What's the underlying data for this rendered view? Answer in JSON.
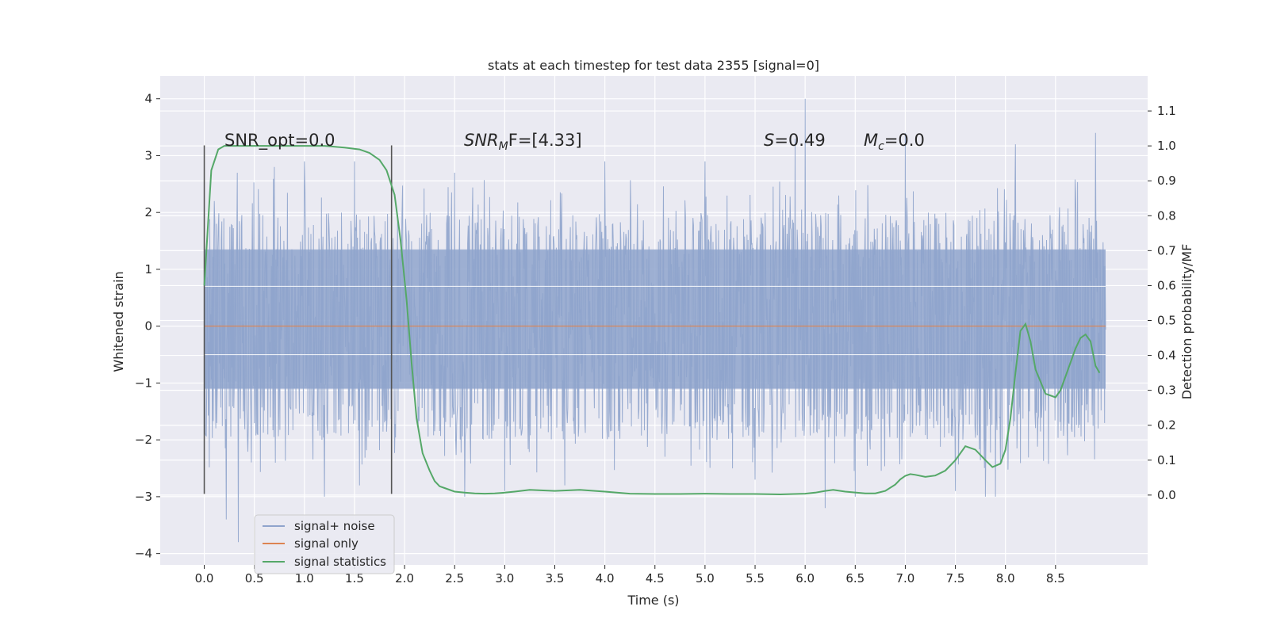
{
  "chart_data": {
    "type": "line",
    "title": "stats at each timestep for test data 2355 [signal=0]",
    "xlabel": "Time (s)",
    "ylabel_left": "Whitened strain",
    "ylabel_right": "Detection probability/MF",
    "xlim": [
      -0.44,
      9.42
    ],
    "ylim_left": [
      -4.2,
      4.4
    ],
    "ylim_right": [
      -0.2,
      1.2
    ],
    "x_ticks": [
      0.0,
      0.5,
      1.0,
      1.5,
      2.0,
      2.5,
      3.0,
      3.5,
      4.0,
      4.5,
      5.0,
      5.5,
      6.0,
      6.5,
      7.0,
      7.5,
      8.0,
      8.5
    ],
    "x_tick_labels": [
      "0.0",
      "0.5",
      "1.0",
      "1.5",
      "2.0",
      "2.5",
      "3.0",
      "3.5",
      "4.0",
      "4.5",
      "5.0",
      "5.5",
      "6.0",
      "6.5",
      "7.0",
      "7.5",
      "8.0",
      "8.5"
    ],
    "y_left_ticks": [
      4,
      3,
      2,
      1,
      0,
      -1,
      -2,
      -3,
      -4
    ],
    "y_left_tick_labels": [
      "4",
      "3",
      "2",
      "1",
      "0",
      "−1",
      "−2",
      "−3",
      "−4"
    ],
    "y_right_ticks": [
      1.1,
      1.0,
      0.9,
      0.8,
      0.7,
      0.6,
      0.5,
      0.4,
      0.3,
      0.2,
      0.1,
      0.0
    ],
    "y_right_tick_labels": [
      "1.1",
      "1.0",
      "0.9",
      "0.8",
      "0.7",
      "0.6",
      "0.5",
      "0.4",
      "0.3",
      "0.2",
      "0.1",
      "0.0"
    ],
    "grid": true,
    "legend_position": "lower-left",
    "vertical_markers": [
      {
        "x": 0.0,
        "y_range": [
          -2.95,
          3.18
        ]
      },
      {
        "x": 1.87,
        "y_range": [
          -2.95,
          3.18
        ]
      }
    ],
    "annotations": {
      "snr_opt": "SNR_opt=0.0",
      "snr_mf_base": "SNR",
      "snr_mf_sub": "M",
      "snr_mf_rest": "F=[4.33]",
      "s_var": "S",
      "s_rest": "=0.49",
      "mc_var": "M",
      "mc_sub": "c",
      "mc_rest": "=0.0"
    },
    "series": [
      {
        "name": "signal+ noise",
        "axis": "left",
        "color": "#8fa4cc",
        "x_range": [
          0.0,
          9.0
        ],
        "envelope": {
          "typical_low": -2.0,
          "typical_high": 2.0,
          "core_low": -1.1,
          "core_high": 1.35
        },
        "peaks": [
          [
            0.1,
            2.2
          ],
          [
            0.22,
            -3.4
          ],
          [
            0.33,
            2.7
          ],
          [
            0.34,
            -3.8
          ],
          [
            0.7,
            2.8
          ],
          [
            1.0,
            2.9
          ],
          [
            1.2,
            -3.0
          ],
          [
            1.5,
            2.9
          ],
          [
            1.55,
            -2.8
          ],
          [
            2.5,
            2.7
          ],
          [
            2.6,
            -3.0
          ],
          [
            3.0,
            -2.9
          ],
          [
            3.6,
            -2.8
          ],
          [
            4.0,
            2.9
          ],
          [
            5.0,
            2.9
          ],
          [
            5.5,
            -2.7
          ],
          [
            5.9,
            3.3
          ],
          [
            6.0,
            4.0
          ],
          [
            6.2,
            -3.2
          ],
          [
            6.5,
            -3.0
          ],
          [
            7.0,
            3.4
          ],
          [
            7.5,
            -2.9
          ],
          [
            7.8,
            -3.0
          ],
          [
            7.9,
            -3.0
          ],
          [
            8.1,
            3.2
          ],
          [
            8.9,
            3.4
          ]
        ]
      },
      {
        "name": "signal only",
        "axis": "left",
        "color": "#dd8452",
        "x": [
          0.0,
          9.0
        ],
        "y": [
          0.0,
          0.0
        ]
      },
      {
        "name": "signal statistics",
        "axis": "right",
        "color": "#55a868",
        "x": [
          0.0,
          0.07,
          0.14,
          0.2,
          0.3,
          0.5,
          0.8,
          1.0,
          1.2,
          1.4,
          1.55,
          1.65,
          1.75,
          1.82,
          1.9,
          1.96,
          2.02,
          2.07,
          2.12,
          2.18,
          2.25,
          2.3,
          2.35,
          2.4,
          2.5,
          2.6,
          2.7,
          2.8,
          2.9,
          3.0,
          3.1,
          3.25,
          3.5,
          3.75,
          4.0,
          4.25,
          4.5,
          4.75,
          5.0,
          5.25,
          5.5,
          5.75,
          6.0,
          6.1,
          6.2,
          6.28,
          6.4,
          6.6,
          6.7,
          6.8,
          6.9,
          6.95,
          7.0,
          7.05,
          7.1,
          7.2,
          7.3,
          7.4,
          7.5,
          7.6,
          7.7,
          7.8,
          7.87,
          7.95,
          8.0,
          8.05,
          8.1,
          8.15,
          8.2,
          8.25,
          8.3,
          8.4,
          8.5,
          8.55,
          8.6,
          8.7,
          8.75,
          8.8,
          8.85,
          8.9,
          8.94
        ],
        "y": [
          0.6,
          0.93,
          0.99,
          1.0,
          1.0,
          1.0,
          1.0,
          1.0,
          1.0,
          0.995,
          0.99,
          0.98,
          0.96,
          0.93,
          0.86,
          0.73,
          0.56,
          0.38,
          0.22,
          0.12,
          0.07,
          0.04,
          0.025,
          0.02,
          0.01,
          0.007,
          0.005,
          0.004,
          0.005,
          0.007,
          0.01,
          0.015,
          0.012,
          0.015,
          0.01,
          0.004,
          0.003,
          0.003,
          0.004,
          0.003,
          0.003,
          0.002,
          0.004,
          0.007,
          0.012,
          0.015,
          0.01,
          0.005,
          0.005,
          0.012,
          0.03,
          0.045,
          0.055,
          0.06,
          0.058,
          0.052,
          0.056,
          0.07,
          0.1,
          0.14,
          0.13,
          0.1,
          0.08,
          0.09,
          0.13,
          0.22,
          0.35,
          0.47,
          0.49,
          0.44,
          0.36,
          0.29,
          0.28,
          0.3,
          0.34,
          0.42,
          0.45,
          0.46,
          0.44,
          0.37,
          0.35
        ]
      }
    ]
  }
}
